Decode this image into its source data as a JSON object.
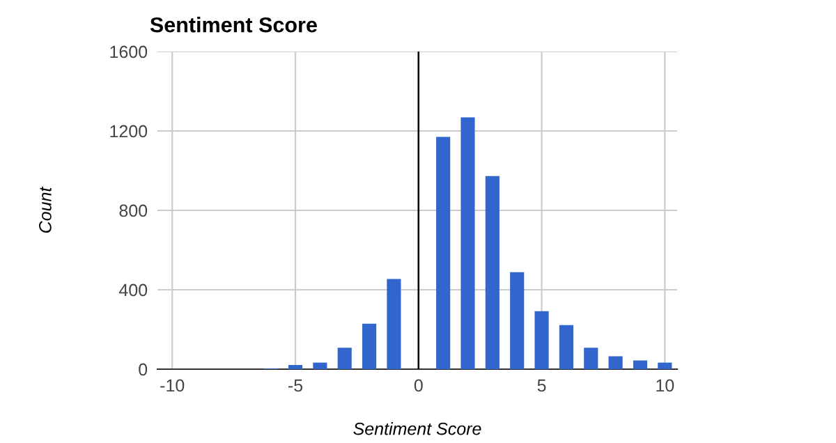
{
  "chart_data": {
    "type": "bar",
    "title": "Sentiment Score",
    "xlabel": "Sentiment Score",
    "ylabel": "Count",
    "x": [
      -6,
      -5,
      -4,
      -3,
      -2,
      -1,
      1,
      2,
      3,
      4,
      5,
      6,
      7,
      8,
      9,
      10
    ],
    "values": [
      3,
      21,
      33,
      108,
      229,
      454,
      1170,
      1268,
      973,
      489,
      292,
      222,
      108,
      65,
      44,
      33
    ],
    "color": "#3366cc",
    "xlim": [
      -10.6,
      10.5
    ],
    "xticks": [
      -10,
      -5,
      0,
      5,
      10
    ],
    "ylim": [
      0,
      1600
    ],
    "yticks": [
      0,
      400,
      800,
      1200,
      1600
    ],
    "ref_lines": [
      {
        "axis": "x",
        "value": 0,
        "color": "#000000"
      }
    ],
    "grid": true
  }
}
